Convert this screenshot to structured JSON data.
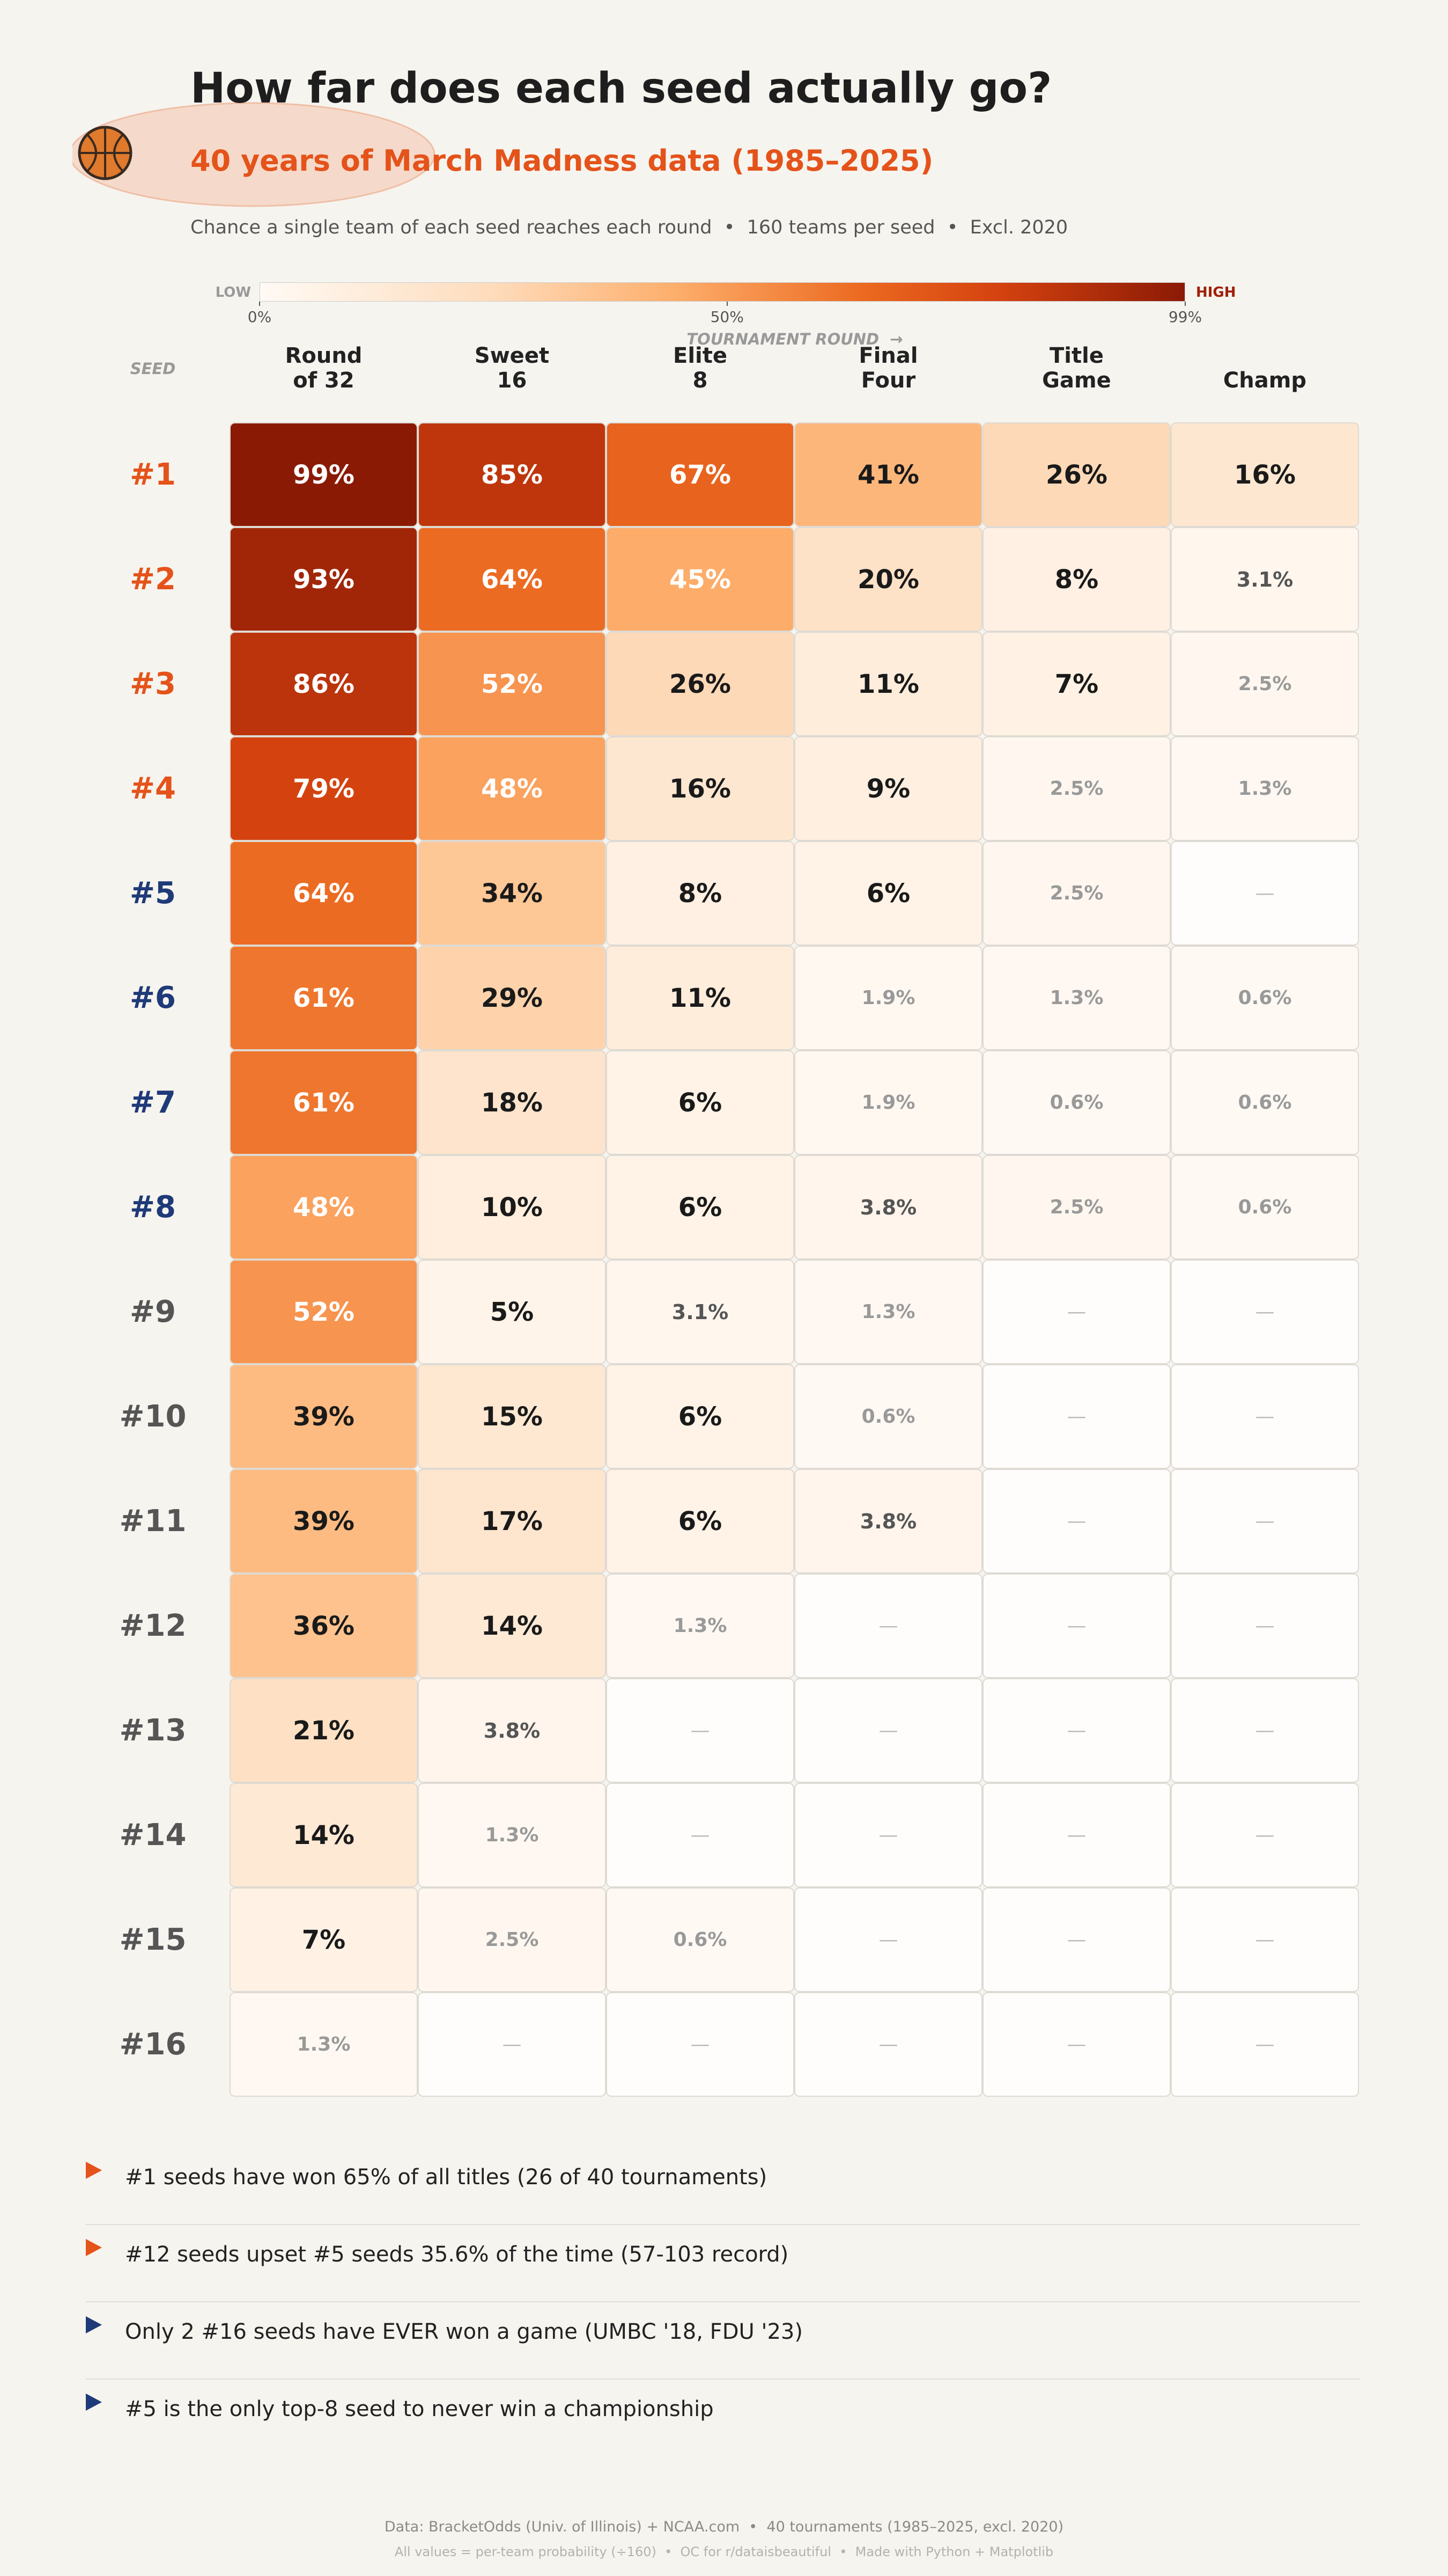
{
  "chart_data": {
    "type": "heatmap",
    "title": "How far does each seed actually go?",
    "subtitle": "40 years of March Madness data (1985–2025)",
    "note": "Chance a single team of each seed reaches each round  •  160 teams per seed  •  Excl. 2020",
    "x_axis_label": "TOURNAMENT ROUND  →",
    "y_axis_label": "SEED",
    "categories": [
      "Round\nof 32",
      "Sweet\n16",
      "Elite\n8",
      "Final\nFour",
      "Title\nGame",
      "Champ"
    ],
    "rows": [
      "#1",
      "#2",
      "#3",
      "#4",
      "#5",
      "#6",
      "#7",
      "#8",
      "#9",
      "#10",
      "#11",
      "#12",
      "#13",
      "#14",
      "#15",
      "#16"
    ],
    "row_colors": [
      "#e4531a",
      "#e4531a",
      "#e4531a",
      "#e4531a",
      "#1f3a78",
      "#1f3a78",
      "#1f3a78",
      "#1f3a78",
      "#555555",
      "#555555",
      "#555555",
      "#555555",
      "#555555",
      "#555555",
      "#555555",
      "#555555"
    ],
    "values": [
      [
        99,
        85,
        67,
        41,
        26,
        16
      ],
      [
        93,
        64,
        45,
        20,
        8,
        3.1
      ],
      [
        86,
        52,
        26,
        11,
        7,
        2.5
      ],
      [
        79,
        48,
        16,
        9,
        2.5,
        1.3
      ],
      [
        64,
        34,
        8,
        6,
        2.5,
        null
      ],
      [
        61,
        29,
        11,
        1.9,
        1.3,
        0.6
      ],
      [
        61,
        18,
        6,
        1.9,
        0.6,
        0.6
      ],
      [
        48,
        10,
        6,
        3.8,
        2.5,
        0.6
      ],
      [
        52,
        5,
        3.1,
        1.3,
        null,
        null
      ],
      [
        39,
        15,
        6,
        0.6,
        null,
        null
      ],
      [
        39,
        17,
        6,
        3.8,
        null,
        null
      ],
      [
        36,
        14,
        1.3,
        null,
        null,
        null
      ],
      [
        21,
        3.8,
        null,
        null,
        null,
        null
      ],
      [
        14,
        1.3,
        null,
        null,
        null,
        null
      ],
      [
        7,
        2.5,
        0.6,
        null,
        null,
        null
      ],
      [
        1.3,
        null,
        null,
        null,
        null,
        null
      ]
    ],
    "value_labels": [
      [
        "99%",
        "85%",
        "67%",
        "41%",
        "26%",
        "16%"
      ],
      [
        "93%",
        "64%",
        "45%",
        "20%",
        "8%",
        "3.1%"
      ],
      [
        "86%",
        "52%",
        "26%",
        "11%",
        "7%",
        "2.5%"
      ],
      [
        "79%",
        "48%",
        "16%",
        "9%",
        "2.5%",
        "1.3%"
      ],
      [
        "64%",
        "34%",
        "8%",
        "6%",
        "2.5%",
        "—"
      ],
      [
        "61%",
        "29%",
        "11%",
        "1.9%",
        "1.3%",
        "0.6%"
      ],
      [
        "61%",
        "18%",
        "6%",
        "1.9%",
        "0.6%",
        "0.6%"
      ],
      [
        "48%",
        "10%",
        "6%",
        "3.8%",
        "2.5%",
        "0.6%"
      ],
      [
        "52%",
        "5%",
        "3.1%",
        "1.3%",
        "—",
        "—"
      ],
      [
        "39%",
        "15%",
        "6%",
        "0.6%",
        "—",
        "—"
      ],
      [
        "39%",
        "17%",
        "6%",
        "3.8%",
        "—",
        "—"
      ],
      [
        "36%",
        "14%",
        "1.3%",
        "—",
        "—",
        "—"
      ],
      [
        "21%",
        "3.8%",
        "—",
        "—",
        "—",
        "—"
      ],
      [
        "14%",
        "1.3%",
        "—",
        "—",
        "—",
        "—"
      ],
      [
        "7%",
        "2.5%",
        "0.6%",
        "—",
        "—",
        "—"
      ],
      [
        "1.3%",
        "—",
        "—",
        "—",
        "—",
        "—"
      ]
    ],
    "zlim": [
      0,
      99
    ],
    "colormap": [
      [
        0,
        "#fffaf5"
      ],
      [
        0.25,
        "#fedcbc"
      ],
      [
        0.45,
        "#fdae6b"
      ],
      [
        0.65,
        "#ec6a21"
      ],
      [
        0.8,
        "#d4420f"
      ],
      [
        1,
        "#8b1a05"
      ]
    ],
    "colorbar": {
      "low_label": "LOW",
      "high_label": "HIGH",
      "ticks": [
        {
          "value": 0,
          "label": "0%"
        },
        {
          "value": 50,
          "label": "50%"
        },
        {
          "value": 99,
          "label": "99%"
        }
      ]
    }
  },
  "insights": [
    "#1 seeds have won 65% of all titles (26 of 40 tournaments)",
    "#12 seeds upset #5 seeds 35.6% of the time (57-103 record)",
    "Only 2 #16 seeds have EVER won a game (UMBC '18, FDU '23)",
    "#5 is the only top-8 seed to never win a championship"
  ],
  "footer": [
    "Data: BracketOdds (Univ. of Illinois) + NCAA.com  •  40 tournaments (1985–2025, excl. 2020)",
    "All values = per-team probability (÷160)  •  OC for r/dataisbeautiful  •  Made with Python + Matplotlib"
  ]
}
